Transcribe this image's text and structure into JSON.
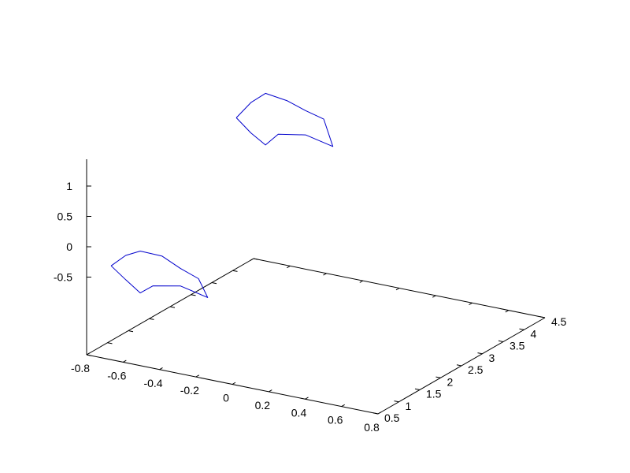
{
  "chart_data": {
    "type": "line",
    "title": "",
    "projection": "3d",
    "xlabel": "",
    "ylabel": "",
    "zlabel": "",
    "grid": false,
    "legend": "none",
    "series_color": "#0000cc",
    "axis_color": "#000000",
    "x_ticks": [
      "-0.8",
      "-0.6",
      "-0.4",
      "-0.2",
      "0",
      "0.2",
      "0.4",
      "0.6",
      "0.8"
    ],
    "y_ticks": [
      "0.5",
      "1",
      "1.5",
      "2",
      "2.5",
      "3",
      "3.5",
      "4",
      "4.5"
    ],
    "z_ticks": [
      "-0.5",
      "0",
      "0.5",
      "1"
    ],
    "xlim": [
      -0.8,
      0.8
    ],
    "ylim": [
      0.5,
      4.5
    ],
    "zlim": [
      -1,
      1.4
    ],
    "series": [
      {
        "values": [
          {
            "x": -0.78,
            "y": 1.0,
            "z": -0.5
          },
          {
            "x": -0.7,
            "y": 1.0,
            "z": -0.28
          },
          {
            "x": -0.62,
            "y": 1.0,
            "z": -0.16
          },
          {
            "x": -0.5,
            "y": 1.0,
            "z": -0.17
          },
          {
            "x": -0.4,
            "y": 1.0,
            "z": -0.31
          },
          {
            "x": -0.3,
            "y": 1.0,
            "z": -0.42
          },
          {
            "x": -0.25,
            "y": 1.0,
            "z": -0.7
          },
          {
            "x": -0.4,
            "y": 1.0,
            "z": -0.6
          },
          {
            "x": -0.55,
            "y": 1.0,
            "z": -0.69
          },
          {
            "x": -0.62,
            "y": 1.0,
            "z": -0.85
          },
          {
            "x": -0.7,
            "y": 1.0,
            "z": -0.68
          },
          {
            "x": -0.78,
            "y": 1.0,
            "z": -0.5
          }
        ]
      },
      {
        "values": [
          {
            "x": -0.78,
            "y": 4.0,
            "z": 0.75
          },
          {
            "x": -0.7,
            "y": 4.0,
            "z": 1.05
          },
          {
            "x": -0.62,
            "y": 4.0,
            "z": 1.25
          },
          {
            "x": -0.5,
            "y": 4.0,
            "z": 1.2
          },
          {
            "x": -0.4,
            "y": 4.0,
            "z": 1.1
          },
          {
            "x": -0.3,
            "y": 4.0,
            "z": 1.02
          },
          {
            "x": -0.25,
            "y": 4.0,
            "z": 0.6
          },
          {
            "x": -0.4,
            "y": 4.0,
            "z": 0.7
          },
          {
            "x": -0.55,
            "y": 4.0,
            "z": 0.62
          },
          {
            "x": -0.62,
            "y": 4.0,
            "z": 0.4
          },
          {
            "x": -0.7,
            "y": 4.0,
            "z": 0.55
          },
          {
            "x": -0.78,
            "y": 4.0,
            "z": 0.75
          }
        ]
      }
    ]
  }
}
